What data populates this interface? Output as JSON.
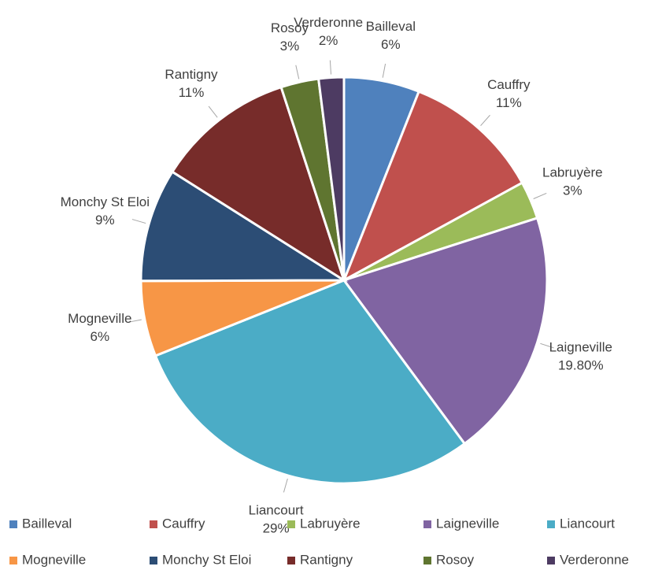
{
  "chart_data": {
    "type": "pie",
    "categories": [
      "Bailleval",
      "Cauffry",
      "Labruyère",
      "Laigneville",
      "Liancourt",
      "Mogneville",
      "Monchy St Eloi",
      "Rantigny",
      "Rosoy",
      "Verderonne"
    ],
    "values": [
      6,
      11,
      3,
      19.8,
      29,
      6,
      9,
      11,
      3,
      2
    ],
    "value_labels": [
      "6%",
      "11%",
      "3%",
      "19.80%",
      "29%",
      "6%",
      "9%",
      "11%",
      "3%",
      "2%"
    ],
    "colors": [
      "#4f81bd",
      "#c0504d",
      "#9bbb59",
      "#8064a2",
      "#4bacc6",
      "#f79646",
      "#2c4d75",
      "#772c2a",
      "#5f7530",
      "#4d3b62"
    ],
    "legend": "bottom"
  }
}
